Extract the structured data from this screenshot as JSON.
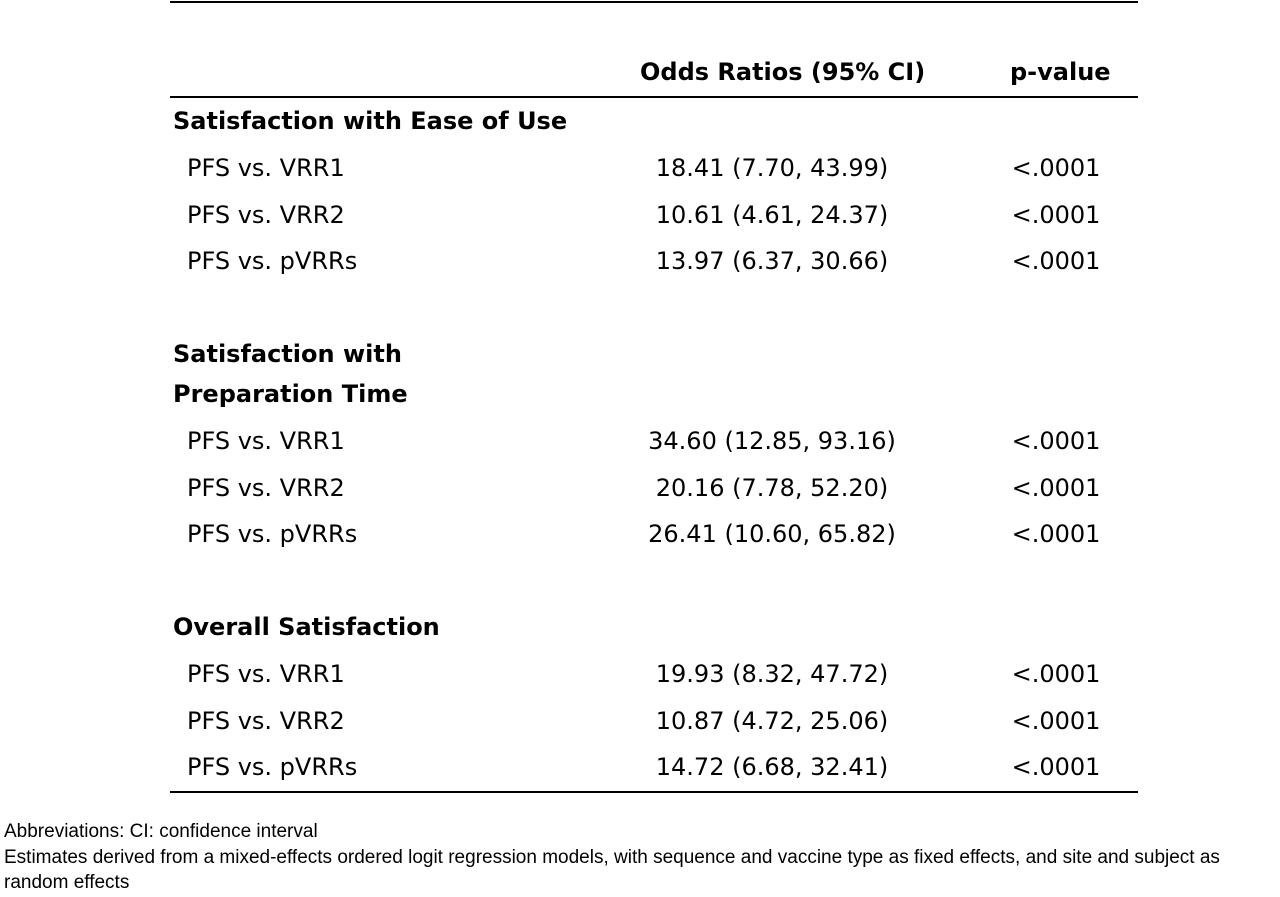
{
  "table": {
    "headers": {
      "odds_ratio": "Odds Ratios (95% CI)",
      "p_value": "p-value"
    },
    "sections": [
      {
        "title": "Satisfaction with Ease of Use",
        "rows": [
          {
            "label": "PFS vs. VRR1",
            "or": "18.41 (7.70, 43.99)",
            "p": "<.0001"
          },
          {
            "label": "PFS vs. VRR2",
            "or": "10.61 (4.61, 24.37)",
            "p": "<.0001"
          },
          {
            "label": "PFS vs. pVRRs",
            "or": "13.97 (6.37, 30.66)",
            "p": "<.0001"
          }
        ]
      },
      {
        "title": "Satisfaction with Preparation Time",
        "rows": [
          {
            "label": "PFS vs. VRR1",
            "or": "34.60 (12.85, 93.16)",
            "p": "<.0001"
          },
          {
            "label": "PFS vs. VRR2",
            "or": "20.16 (7.78, 52.20)",
            "p": "<.0001"
          },
          {
            "label": "PFS vs. pVRRs",
            "or": "26.41 (10.60, 65.82)",
            "p": "<.0001"
          }
        ]
      },
      {
        "title": "Overall Satisfaction",
        "rows": [
          {
            "label": "PFS vs. VRR1",
            "or": "19.93 (8.32, 47.72)",
            "p": "<.0001"
          },
          {
            "label": "PFS vs. VRR2",
            "or": "10.87 (4.72, 25.06)",
            "p": "<.0001"
          },
          {
            "label": "PFS vs. pVRRs",
            "or": "14.72 (6.68, 32.41)",
            "p": "<.0001"
          }
        ]
      }
    ]
  },
  "footnotes": {
    "abbreviations": "Abbreviations: CI: confidence interval",
    "estimates": "Estimates derived from a mixed-effects ordered logit regression models, with sequence and vaccine type as fixed effects, and site and subject as random effects"
  }
}
